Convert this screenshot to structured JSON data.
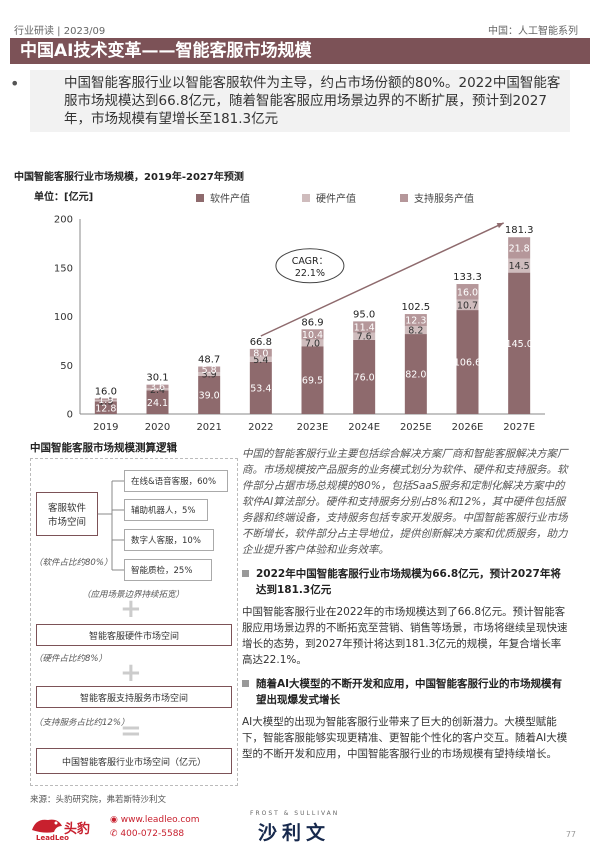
{
  "header": {
    "left": "行业研读 | 2023/09",
    "right": "中国：人工智能系列"
  },
  "title": "中国AI技术变革——智能客服市场规模",
  "summary": "中国智能客服行业以智能客服软件为主导，约占市场份额的80%。2022中国智能客服市场规模达到66.8亿元，随着智能客服应用场景边界的不断扩展，预计到2027年，市场规模有望增长至181.3亿元",
  "chart_title": "中国智能客服行业市场规模，2019年-2027年预测",
  "unit_label": "单位：[亿元]",
  "colors": {
    "software": "#8e6a6d",
    "hardware": "#cfbcbd",
    "service": "#b5979a",
    "title_bg": "#7c5257",
    "logo": "#c8202e"
  },
  "chart_data": {
    "type": "bar",
    "stacked": true,
    "categories": [
      "2019",
      "2020",
      "2021",
      "2022",
      "2023E",
      "2024E",
      "2025E",
      "2026E",
      "2027E"
    ],
    "series": [
      {
        "name": "软件产值",
        "values": [
          12.8,
          24.1,
          39.0,
          53.4,
          69.5,
          76.0,
          82.0,
          106.6,
          145.0
        ]
      },
      {
        "name": "硬件产值",
        "values": [
          1.3,
          2.4,
          3.9,
          5.4,
          7.0,
          7.6,
          8.2,
          10.7,
          14.5
        ]
      },
      {
        "name": "支持服务产值",
        "values": [
          1.9,
          3.6,
          5.8,
          8.0,
          10.4,
          11.4,
          12.3,
          16.0,
          21.8
        ]
      }
    ],
    "totals": [
      16.0,
      30.1,
      48.7,
      66.8,
      86.9,
      95.0,
      102.5,
      133.3,
      181.3
    ],
    "ylim": [
      0,
      200
    ],
    "yticks": [
      0,
      50,
      100,
      150,
      200
    ],
    "legend_position": "top",
    "cagr_label": "CAGR：",
    "cagr_value": "22.1%"
  },
  "logic": {
    "title": "中国智能客服市场规模测算逻辑",
    "software_box": "客服软件\n市场空间",
    "sub_items": [
      "在线&语音客服，60%",
      "辅助机器人，5%",
      "数字人客服，10%",
      "智能质检，25%"
    ],
    "note_software": "（软件占比约80%）",
    "note_scenario": "（应用场景边界持续拓宽）",
    "hardware_box": "智能客服硬件市场空间",
    "note_hardware": "（硬件占比约8%）",
    "service_box": "智能客服支持服务市场空间",
    "note_service": "（支持服务占比约12%）",
    "total_box": "中国智能客服行业市场空间（亿元）",
    "plus": "+",
    "equals": "="
  },
  "right": {
    "intro": "中国的智能客服行业主要包括综合解决方案厂商和智能客服解决方案厂商。市场规模按产品服务的业务模式划分为软件、硬件和支持服务。软件部分占据市场总规模的80%，包括SaaS服务和定制化解决方案中的软件AI算法部分。硬件和支持服务分别占8%和12%，其中硬件包括服务器和终端设备，支持服务包括专家开发服务。中国智能客服行业市场不断增长，软件部分占主导地位，提供创新解决方案和优质服务，助力企业提升客户体验和业务效率。",
    "h1": "2022年中国智能客服行业市场规模为66.8亿元，预计2027年将达到181.3亿元",
    "p1": "中国智能客服行业在2022年的市场规模达到了66.8亿元。预计智能客服应用场景边界的不断拓宽至营销、销售等场景，市场将继续呈现快速增长的态势，到2027年预计将达到181.3亿元的规模，年复合增长率高达22.1%。",
    "h2": "随着AI大模型的不断开发和应用，中国智能客服行业的市场规模有望出现爆发式增长",
    "p2": "AI大模型的出现为智能客服行业带来了巨大的创新潜力。大模型赋能下，智能客服能够实现更精准、更智能个性化的客户交互。随着AI大模型的不断开发和应用，中国智能客服行业的市场规模有望持续增长。"
  },
  "source": "来源：头豹研究院，弗若斯特沙利文",
  "footer": {
    "logo_cn": "头豹",
    "logo_en": "LeadLeo",
    "website": "www.leadleo.com",
    "phone": "400-072-5588",
    "fs_en": "FROST & SULLIVAN",
    "fs_cn": "沙利文",
    "page": "77"
  }
}
